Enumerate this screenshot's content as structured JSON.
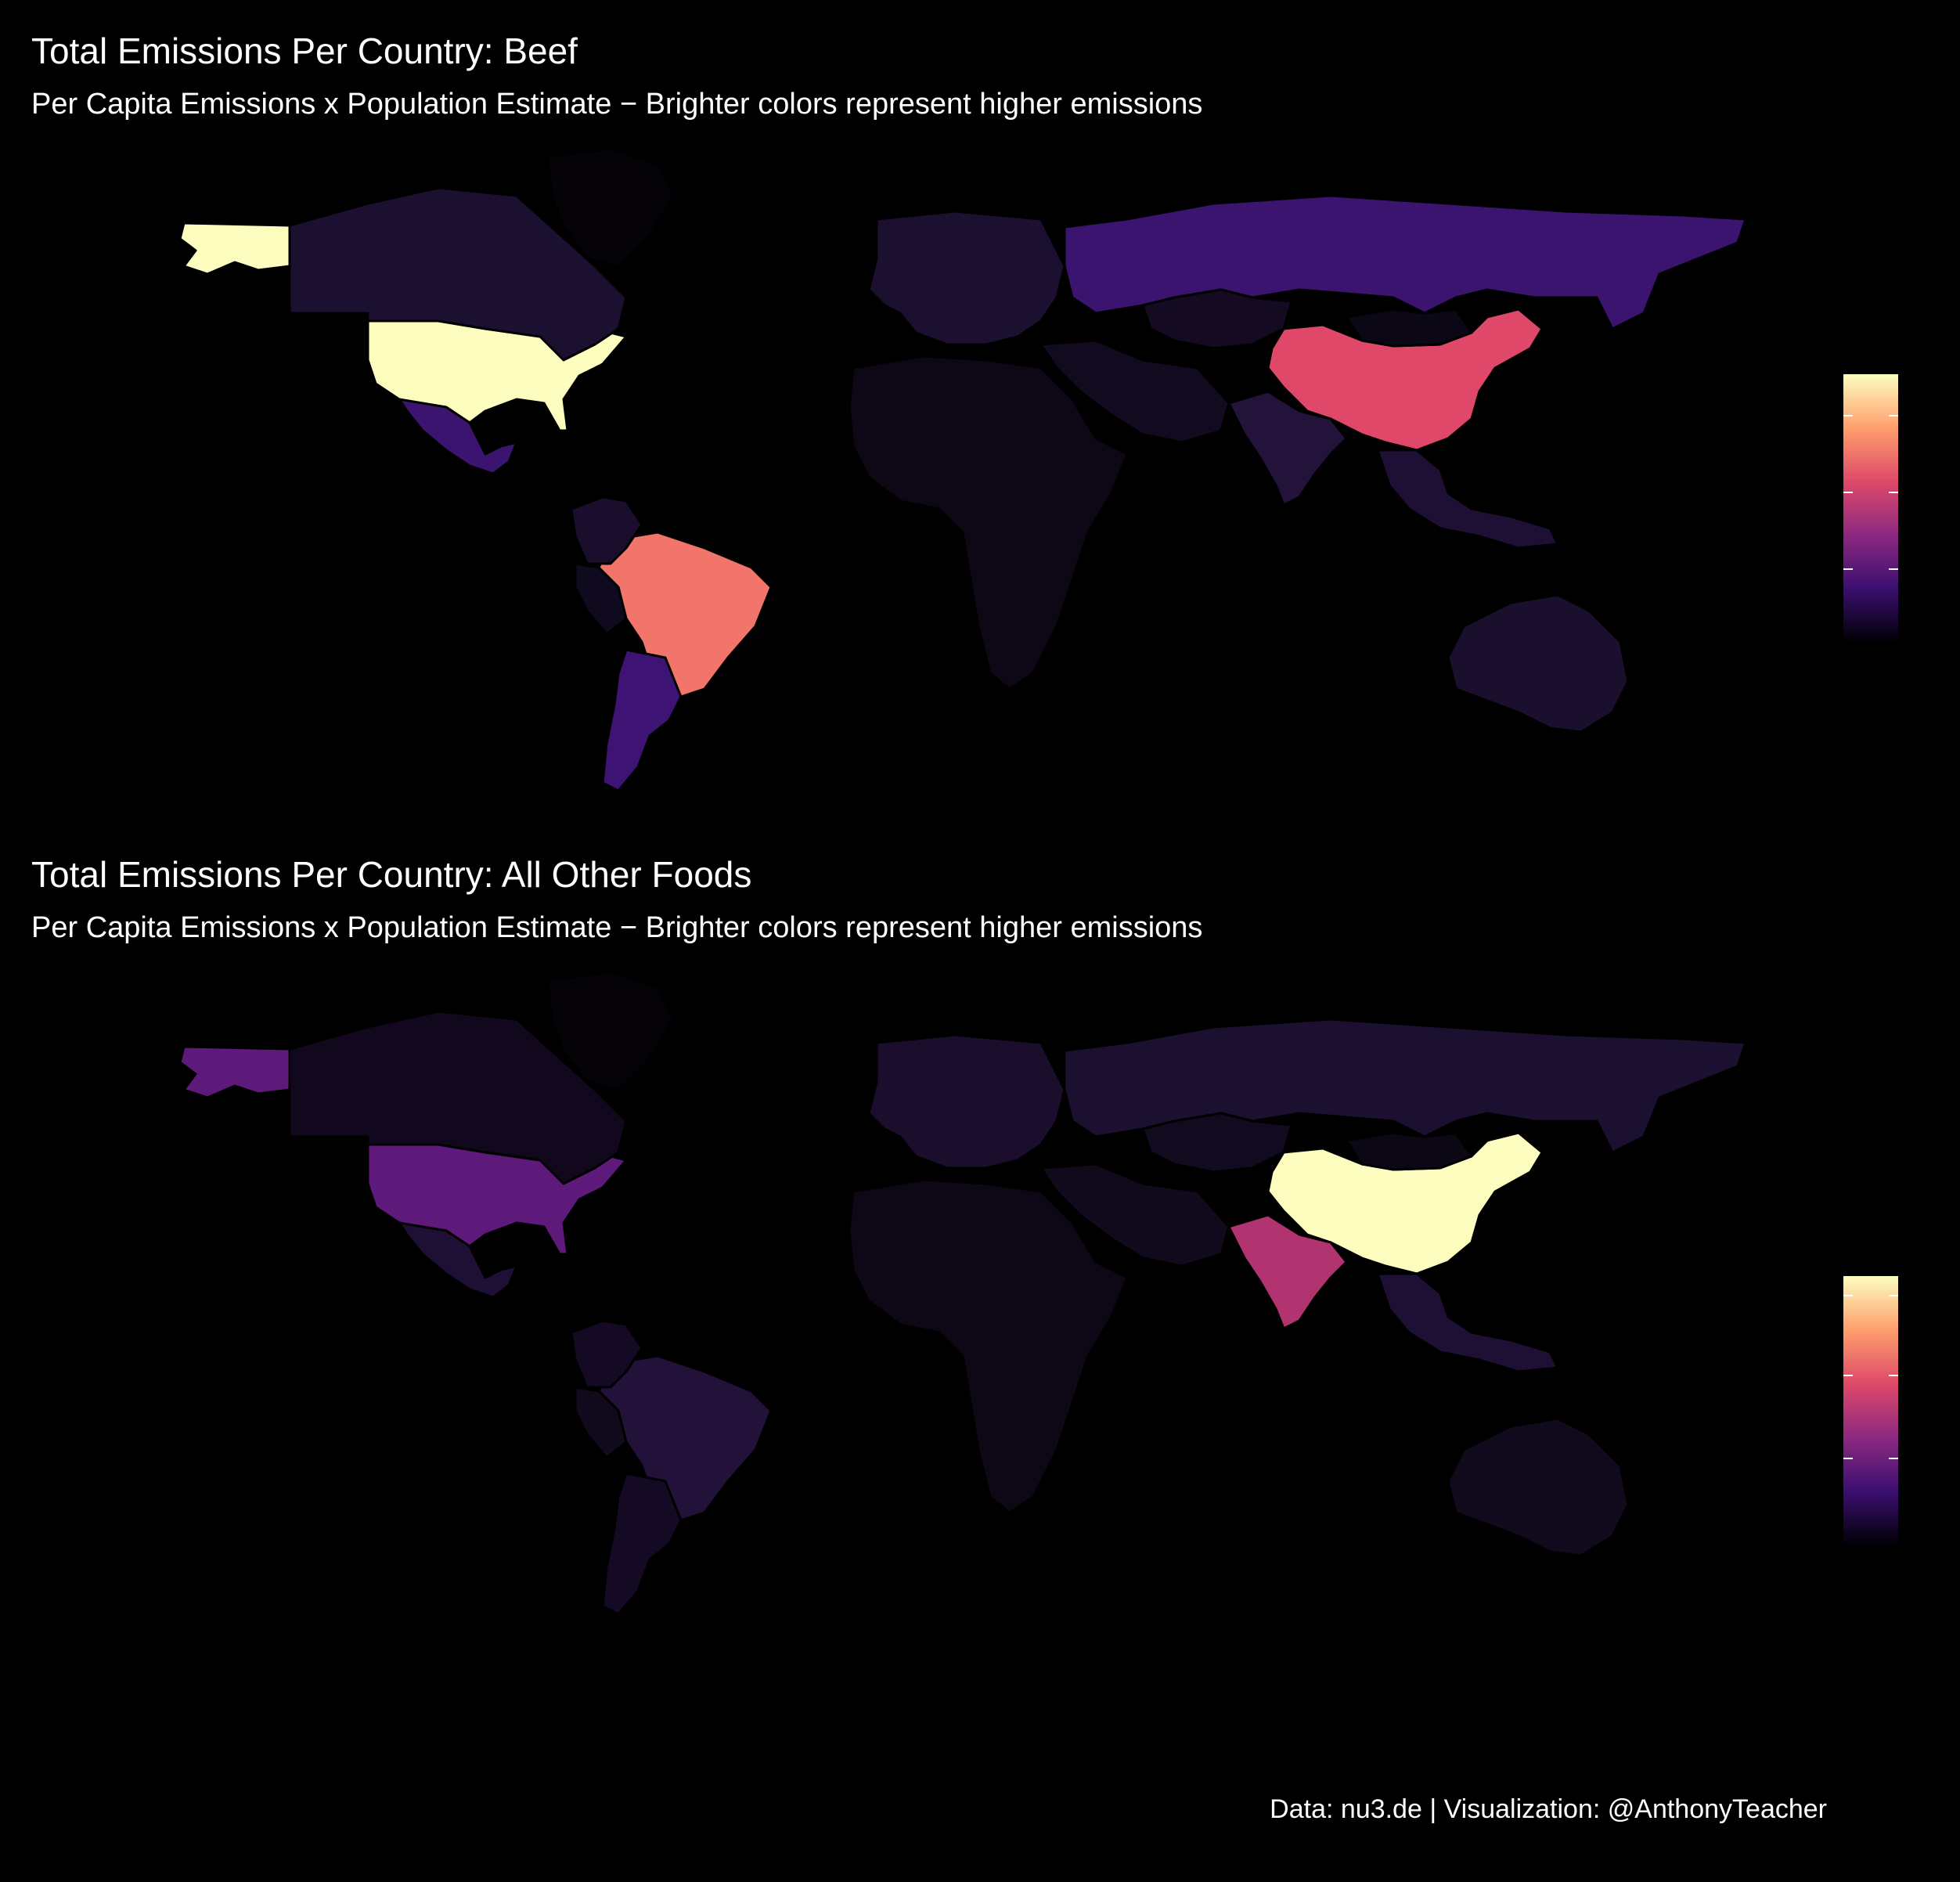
{
  "panels": [
    {
      "title": "Total Emissions Per Country: Beef",
      "subtitle": "Per Capita Emissions x Population Estimate − Brighter colors represent higher emissions",
      "countries": [
        {
          "name": "United States",
          "color": "#fcfdbf"
        },
        {
          "name": "Alaska",
          "color": "#fcfdbf"
        },
        {
          "name": "Canada",
          "color": "#1c1030"
        },
        {
          "name": "Greenland",
          "color": "#050308"
        },
        {
          "name": "Mexico",
          "color": "#3b1470"
        },
        {
          "name": "Brazil",
          "color": "#f1756a"
        },
        {
          "name": "Argentina",
          "color": "#3d1373"
        },
        {
          "name": "Colombia",
          "color": "#1a0e2c"
        },
        {
          "name": "Peru",
          "color": "#100a1e"
        },
        {
          "name": "Russia",
          "color": "#3b1470"
        },
        {
          "name": "China",
          "color": "#e0486a"
        },
        {
          "name": "India",
          "color": "#231239"
        },
        {
          "name": "Kazakhstan",
          "color": "#140a22"
        },
        {
          "name": "Mongolia",
          "color": "#0c0714"
        },
        {
          "name": "Europe",
          "color": "#1c1030"
        },
        {
          "name": "Middle East",
          "color": "#120a1e"
        },
        {
          "name": "Africa",
          "color": "#0e0816"
        },
        {
          "name": "Southeast Asia",
          "color": "#1e1034"
        },
        {
          "name": "Australia",
          "color": "#1a0f2c"
        }
      ],
      "legend_ticks": 3
    },
    {
      "title": "Total Emissions Per Country: All Other Foods",
      "subtitle": "Per Capita Emissions x Population Estimate − Brighter colors represent higher emissions",
      "countries": [
        {
          "name": "United States",
          "color": "#5e1a7a"
        },
        {
          "name": "Alaska",
          "color": "#5e1a7a"
        },
        {
          "name": "Canada",
          "color": "#12081e"
        },
        {
          "name": "Greenland",
          "color": "#050308"
        },
        {
          "name": "Mexico",
          "color": "#1e1034"
        },
        {
          "name": "Brazil",
          "color": "#221239"
        },
        {
          "name": "Argentina",
          "color": "#140a24"
        },
        {
          "name": "Colombia",
          "color": "#140a24"
        },
        {
          "name": "Peru",
          "color": "#100a1c"
        },
        {
          "name": "Russia",
          "color": "#1c1030"
        },
        {
          "name": "China",
          "color": "#fcfdbf"
        },
        {
          "name": "India",
          "color": "#b1336f"
        },
        {
          "name": "Kazakhstan",
          "color": "#120a1e"
        },
        {
          "name": "Mongolia",
          "color": "#0c0714"
        },
        {
          "name": "Europe",
          "color": "#1a0e2c"
        },
        {
          "name": "Middle East",
          "color": "#110a1c"
        },
        {
          "name": "Africa",
          "color": "#0e0816"
        },
        {
          "name": "Southeast Asia",
          "color": "#1e1034"
        },
        {
          "name": "Australia",
          "color": "#110a1c"
        }
      ],
      "legend_ticks": 3
    }
  ],
  "caption": "Data: nu3.de | Visualization: @AnthonyTeacher",
  "colormap": [
    "#000004",
    "#3b0f70",
    "#8c2981",
    "#de4968",
    "#fe9f6d",
    "#fcfdbf"
  ]
}
